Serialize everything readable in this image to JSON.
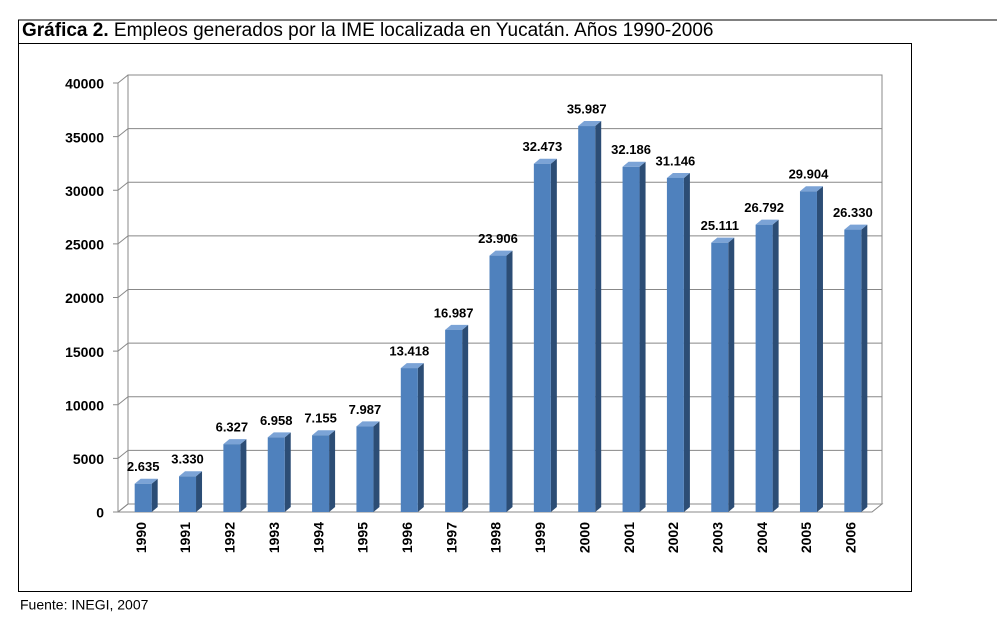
{
  "chart_data": {
    "type": "bar",
    "title_label": "Gráfica 2.",
    "title": "Empleos generados por la IME localizada en Yucatán. Años 1990-2006",
    "source": "Fuente: INEGI, 2007",
    "categories": [
      "1990",
      "1991",
      "1992",
      "1993",
      "1994",
      "1995",
      "1996",
      "1997",
      "1998",
      "1999",
      "2000",
      "2001",
      "2002",
      "2003",
      "2004",
      "2005",
      "2006"
    ],
    "values": [
      2635,
      3330,
      6327,
      6958,
      7155,
      7987,
      13418,
      16987,
      23906,
      32473,
      35987,
      32186,
      31146,
      25111,
      26792,
      29904,
      26330
    ],
    "value_labels": [
      "2.635",
      "3.330",
      "6.327",
      "6.958",
      "7.155",
      "7.987",
      "13.418",
      "16.987",
      "23.906",
      "32.473",
      "35.987",
      "32.186",
      "31.146",
      "25.111",
      "26.792",
      "29.904",
      "26.330"
    ],
    "color": "#4f81bd",
    "ylim": [
      0,
      40000
    ],
    "yticks": [
      0,
      5000,
      10000,
      15000,
      20000,
      25000,
      30000,
      35000,
      40000
    ],
    "grid": true
  }
}
